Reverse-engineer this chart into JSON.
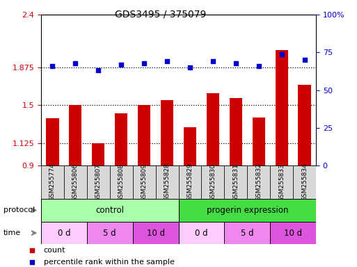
{
  "title": "GDS3495 / 375079",
  "samples": [
    "GSM255774",
    "GSM255806",
    "GSM255807",
    "GSM255808",
    "GSM255809",
    "GSM255828",
    "GSM255829",
    "GSM255830",
    "GSM255831",
    "GSM255832",
    "GSM255833",
    "GSM255834"
  ],
  "bar_values": [
    1.37,
    1.5,
    1.12,
    1.42,
    1.5,
    1.55,
    1.28,
    1.62,
    1.57,
    1.38,
    2.05,
    1.7
  ],
  "scatter_values": [
    66,
    68,
    63,
    67,
    68,
    69,
    65,
    69,
    68,
    66,
    74,
    70
  ],
  "ylim_left": [
    0.9,
    2.4
  ],
  "ylim_right": [
    0,
    100
  ],
  "yticks_left": [
    0.9,
    1.125,
    1.5,
    1.875,
    2.4
  ],
  "ytick_labels_left": [
    "0.9",
    "1.125",
    "1.5",
    "1.875",
    "2.4"
  ],
  "yticks_right": [
    0,
    25,
    50,
    75,
    100
  ],
  "ytick_labels_right": [
    "0",
    "25",
    "50",
    "75",
    "100%"
  ],
  "hlines": [
    1.125,
    1.5,
    1.875
  ],
  "bar_color": "#CC0000",
  "scatter_color": "#0000CC",
  "protocol_control_label": "control",
  "protocol_progerin_label": "progerin expression",
  "protocol_control_color": "#AAFFAA",
  "protocol_progerin_color": "#44DD44",
  "time_0d_color": "#FFCCFF",
  "time_5d_color": "#EE88EE",
  "time_10d_color": "#DD55DD",
  "time_labels": [
    "0 d",
    "5 d",
    "10 d",
    "0 d",
    "5 d",
    "10 d"
  ],
  "legend_count_label": "count",
  "legend_pct_label": "percentile rank within the sample",
  "protocol_label": "protocol",
  "time_label": "time",
  "sample_box_color": "#D8D8D8",
  "bg_color": "#FFFFFF"
}
